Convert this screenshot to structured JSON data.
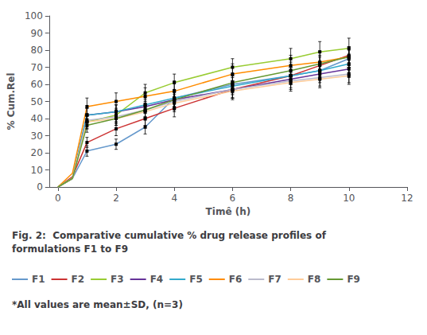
{
  "chart_data": {
    "type": "line",
    "caption": [
      "Fig. 2:  Comparative cumulative % drug release profiles of",
      "formulations F1 to F9"
    ],
    "note": "*All values are mean±SD, (n=3)",
    "xlabel": "Timê (h)",
    "ylabel": "% Cum.Rel",
    "x": [
      0,
      0.5,
      1,
      2,
      3,
      4,
      6,
      8,
      9,
      10
    ],
    "error_x": [
      1,
      2,
      3,
      4,
      6,
      8,
      9,
      10
    ],
    "series": [
      {
        "name": "F1",
        "color": "#6699CC",
        "values": [
          0,
          5,
          21,
          25,
          35,
          52,
          60,
          65,
          68,
          75
        ],
        "errors": [
          3,
          3,
          4,
          5,
          5,
          5,
          5,
          5
        ]
      },
      {
        "name": "F2",
        "color": "#CC3333",
        "values": [
          0,
          6,
          26,
          34,
          40,
          46,
          57,
          65,
          71,
          77
        ],
        "errors": [
          3,
          4,
          4,
          5,
          5,
          5,
          5,
          5
        ]
      },
      {
        "name": "F3",
        "color": "#99CC33",
        "values": [
          0,
          5,
          38,
          42,
          55,
          61,
          70,
          75,
          79,
          81
        ],
        "errors": [
          4,
          4,
          5,
          5,
          5,
          6,
          6,
          6
        ]
      },
      {
        "name": "F4",
        "color": "#663399",
        "values": [
          0,
          5,
          42,
          44,
          47,
          51,
          57,
          63,
          66,
          69
        ],
        "errors": [
          4,
          4,
          4,
          5,
          5,
          5,
          5,
          5
        ]
      },
      {
        "name": "F5",
        "color": "#33AACC",
        "values": [
          0,
          5,
          42,
          44,
          48,
          52,
          59,
          65,
          68,
          72
        ],
        "errors": [
          4,
          4,
          4,
          5,
          5,
          5,
          5,
          5
        ]
      },
      {
        "name": "F6",
        "color": "#FF8C00",
        "values": [
          0,
          8,
          47,
          50,
          53,
          56,
          66,
          71,
          73,
          76
        ],
        "errors": [
          5,
          5,
          5,
          6,
          6,
          6,
          6,
          6
        ]
      },
      {
        "name": "F7",
        "color": "#BBBBCC",
        "values": [
          0,
          5,
          39,
          41,
          45,
          50,
          57,
          62,
          64,
          66
        ],
        "errors": [
          4,
          4,
          4,
          5,
          5,
          5,
          5,
          5
        ]
      },
      {
        "name": "F8",
        "color": "#FFCC99",
        "values": [
          0,
          5,
          38,
          40,
          44,
          49,
          56,
          61,
          63,
          65
        ],
        "errors": [
          4,
          4,
          4,
          5,
          5,
          5,
          5,
          5
        ]
      },
      {
        "name": "F9",
        "color": "#669933",
        "values": [
          0,
          5,
          36,
          40,
          45,
          51,
          61,
          68,
          72,
          76
        ],
        "errors": [
          4,
          4,
          4,
          5,
          5,
          5,
          5,
          5
        ]
      }
    ],
    "xlim": [
      -0.3,
      12
    ],
    "xticks": [
      0,
      2,
      4,
      6,
      8,
      10,
      12
    ],
    "ylim": [
      0,
      100
    ],
    "yticks": [
      0,
      10,
      20,
      30,
      40,
      50,
      60,
      70,
      80,
      90,
      100
    ],
    "grid": false,
    "legend": "bottom"
  }
}
